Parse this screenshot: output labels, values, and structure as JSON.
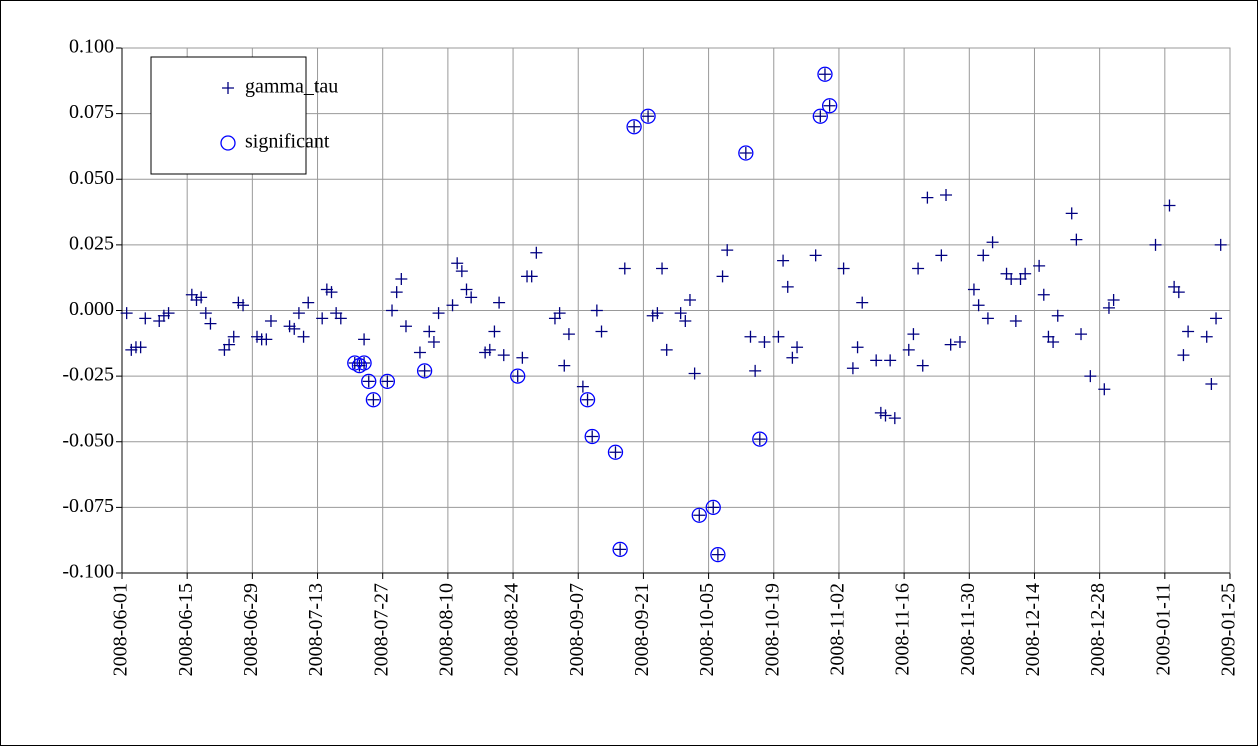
{
  "chart_data": {
    "type": "scatter",
    "xlim": [
      "2008-06-01",
      "2009-01-25"
    ],
    "xticks": [
      "2008-06-01",
      "2008-06-15",
      "2008-06-29",
      "2008-07-13",
      "2008-07-27",
      "2008-08-10",
      "2008-08-24",
      "2008-09-07",
      "2008-09-21",
      "2008-10-05",
      "2008-10-19",
      "2008-11-02",
      "2008-11-16",
      "2008-11-30",
      "2008-12-14",
      "2008-12-28",
      "2009-01-11",
      "2009-01-25"
    ],
    "ylim": [
      -0.1,
      0.1
    ],
    "yticks": [
      {
        "value": -0.1,
        "label": "-0.100"
      },
      {
        "value": -0.075,
        "label": "-0.075"
      },
      {
        "value": -0.05,
        "label": "-0.050"
      },
      {
        "value": -0.025,
        "label": "-0.025"
      },
      {
        "value": 0,
        "label": "0.000"
      },
      {
        "value": 0.025,
        "label": "0.025"
      },
      {
        "value": 0.05,
        "label": "0.050"
      },
      {
        "value": 0.075,
        "label": "0.075"
      },
      {
        "value": 0.1,
        "label": "0.100"
      }
    ],
    "grid": true,
    "legend": "upper-left",
    "series": [
      {
        "name": "gamma_tau",
        "color": "#000080",
        "marker": "plus",
        "x": [
          "2008-06-02",
          "2008-06-03",
          "2008-06-04",
          "2008-06-05",
          "2008-06-06",
          "2008-06-09",
          "2008-06-10",
          "2008-06-11",
          "2008-06-16",
          "2008-06-17",
          "2008-06-18",
          "2008-06-19",
          "2008-06-20",
          "2008-06-23",
          "2008-06-24",
          "2008-06-25",
          "2008-06-26",
          "2008-06-27",
          "2008-06-30",
          "2008-07-01",
          "2008-07-02",
          "2008-07-03",
          "2008-07-07",
          "2008-07-08",
          "2008-07-09",
          "2008-07-10",
          "2008-07-11",
          "2008-07-14",
          "2008-07-15",
          "2008-07-16",
          "2008-07-17",
          "2008-07-18",
          "2008-07-21",
          "2008-07-22",
          "2008-07-23",
          "2008-07-23",
          "2008-07-24",
          "2008-07-25",
          "2008-07-28",
          "2008-07-29",
          "2008-07-30",
          "2008-07-31",
          "2008-08-01",
          "2008-08-04",
          "2008-08-05",
          "2008-08-06",
          "2008-08-07",
          "2008-08-08",
          "2008-08-11",
          "2008-08-12",
          "2008-08-13",
          "2008-08-14",
          "2008-08-15",
          "2008-08-18",
          "2008-08-19",
          "2008-08-20",
          "2008-08-21",
          "2008-08-22",
          "2008-08-25",
          "2008-08-26",
          "2008-08-27",
          "2008-08-28",
          "2008-08-29",
          "2008-09-02",
          "2008-09-03",
          "2008-09-04",
          "2008-09-05",
          "2008-09-08",
          "2008-09-09",
          "2008-09-10",
          "2008-09-11",
          "2008-09-12",
          "2008-09-15",
          "2008-09-16",
          "2008-09-17",
          "2008-09-19",
          "2008-09-22",
          "2008-09-23",
          "2008-09-24",
          "2008-09-25",
          "2008-09-26",
          "2008-09-29",
          "2008-09-30",
          "2008-10-01",
          "2008-10-02",
          "2008-10-03",
          "2008-10-06",
          "2008-10-07",
          "2008-10-08",
          "2008-10-09",
          "2008-10-13",
          "2008-10-14",
          "2008-10-15",
          "2008-10-16",
          "2008-10-17",
          "2008-10-20",
          "2008-10-21",
          "2008-10-22",
          "2008-10-23",
          "2008-10-24",
          "2008-10-28",
          "2008-10-29",
          "2008-10-30",
          "2008-10-31",
          "2008-11-03",
          "2008-11-05",
          "2008-11-06",
          "2008-11-07",
          "2008-11-10",
          "2008-11-11",
          "2008-11-12",
          "2008-11-13",
          "2008-11-14",
          "2008-11-17",
          "2008-11-18",
          "2008-11-19",
          "2008-11-20",
          "2008-11-21",
          "2008-11-24",
          "2008-11-25",
          "2008-11-26",
          "2008-11-28",
          "2008-12-01",
          "2008-12-02",
          "2008-12-03",
          "2008-12-04",
          "2008-12-05",
          "2008-12-08",
          "2008-12-09",
          "2008-12-10",
          "2008-12-11",
          "2008-12-12",
          "2008-12-15",
          "2008-12-16",
          "2008-12-17",
          "2008-12-18",
          "2008-12-19",
          "2008-12-22",
          "2008-12-23",
          "2008-12-24",
          "2008-12-26",
          "2008-12-29",
          "2008-12-30",
          "2008-12-31",
          "2009-01-09",
          "2009-01-12",
          "2009-01-13",
          "2009-01-14",
          "2009-01-15",
          "2009-01-16",
          "2009-01-20",
          "2009-01-21",
          "2009-01-22",
          "2009-01-23"
        ],
        "values": [
          -0.001,
          -0.015,
          -0.014,
          -0.014,
          -0.003,
          -0.004,
          -0.002,
          -0.001,
          0.006,
          0.004,
          0.005,
          -0.001,
          -0.005,
          -0.015,
          -0.013,
          -0.01,
          0.003,
          0.002,
          -0.01,
          -0.011,
          -0.011,
          -0.004,
          -0.006,
          -0.007,
          -0.001,
          -0.01,
          0.003,
          -0.003,
          0.008,
          0.007,
          -0.001,
          -0.003,
          -0.02,
          -0.021,
          -0.011,
          -0.02,
          -0.027,
          -0.034,
          -0.027,
          0,
          0.007,
          0.012,
          -0.006,
          -0.016,
          -0.023,
          -0.008,
          -0.012,
          -0.001,
          0.002,
          0.018,
          0.015,
          0.008,
          0.005,
          -0.016,
          -0.015,
          -0.008,
          0.003,
          -0.017,
          -0.025,
          -0.018,
          0.013,
          0.013,
          0.022,
          -0.003,
          -0.001,
          -0.021,
          -0.009,
          -0.029,
          -0.034,
          -0.048,
          0,
          -0.008,
          -0.054,
          -0.091,
          0.016,
          0.07,
          0.074,
          -0.002,
          -0.001,
          0.016,
          -0.015,
          -0.001,
          -0.004,
          0.004,
          -0.024,
          -0.078,
          -0.075,
          -0.093,
          0.013,
          0.023,
          0.06,
          -0.01,
          -0.023,
          -0.049,
          -0.012,
          -0.01,
          0.019,
          0.009,
          -0.018,
          -0.014,
          0.021,
          0.074,
          0.09,
          0.078,
          0.016,
          -0.022,
          -0.014,
          0.003,
          -0.019,
          -0.039,
          -0.04,
          -0.019,
          -0.041,
          -0.015,
          -0.009,
          0.016,
          -0.021,
          0.043,
          0.021,
          0.044,
          -0.013,
          -0.012,
          0.008,
          0.002,
          0.021,
          -0.003,
          0.026,
          0.014,
          0.012,
          -0.004,
          0.012,
          0.014,
          0.017,
          0.006,
          -0.01,
          -0.012,
          -0.002,
          0.037,
          0.027,
          -0.009,
          -0.025,
          -0.03,
          0.001,
          0.004,
          0.025,
          0.04,
          0.009,
          0.007,
          -0.017,
          -0.008,
          -0.01,
          -0.028,
          -0.003,
          0.025
        ]
      },
      {
        "name": "significant",
        "color": "#0000ff",
        "marker": "circle",
        "x": [
          "2008-07-21",
          "2008-07-22",
          "2008-07-23",
          "2008-07-24",
          "2008-07-25",
          "2008-07-28",
          "2008-08-05",
          "2008-08-25",
          "2008-09-09",
          "2008-09-10",
          "2008-09-15",
          "2008-09-16",
          "2008-09-19",
          "2008-09-22",
          "2008-10-03",
          "2008-10-06",
          "2008-10-07",
          "2008-10-13",
          "2008-10-16",
          "2008-10-29",
          "2008-10-30",
          "2008-10-31"
        ],
        "values": [
          -0.02,
          -0.021,
          -0.02,
          -0.027,
          -0.034,
          -0.027,
          -0.023,
          -0.025,
          -0.034,
          -0.048,
          -0.054,
          -0.091,
          0.07,
          0.074,
          -0.078,
          -0.075,
          -0.093,
          0.06,
          -0.049,
          0.074,
          0.09,
          0.078
        ]
      }
    ]
  }
}
